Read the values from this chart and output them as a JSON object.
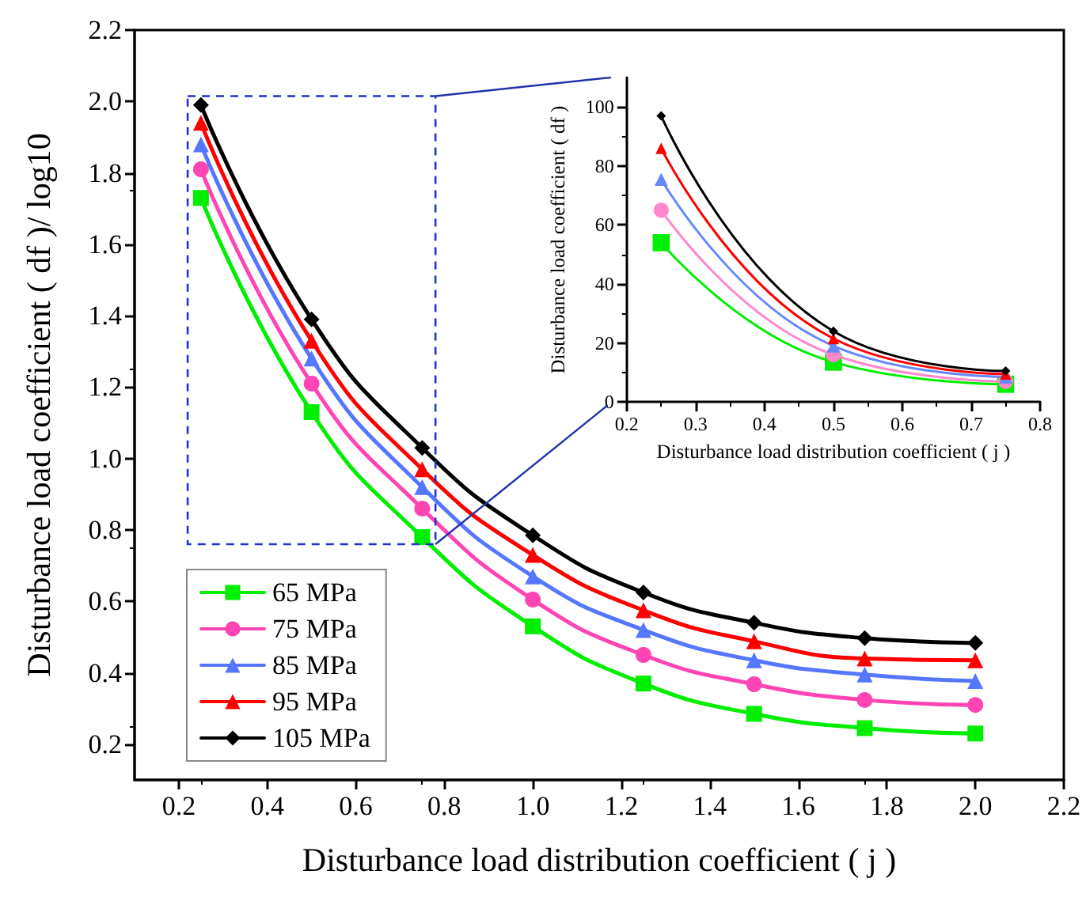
{
  "chart_data": [
    {
      "type": "line",
      "xlabel": "Disturbance load distribution coefficient ( j )",
      "ylabel": "Disturbance load coefficient ( df )/ log10",
      "x": [
        0.25,
        0.5,
        0.75,
        1.0,
        1.25,
        1.5,
        1.75,
        2.0
      ],
      "series": [
        {
          "name": "65 MPa",
          "color": "#00ee00",
          "marker": "square",
          "values": [
            1.73,
            1.13,
            0.78,
            0.53,
            0.37,
            0.285,
            0.245,
            0.23
          ]
        },
        {
          "name": "75 MPa",
          "color": "#ff44b4",
          "marker": "circle",
          "values": [
            1.81,
            1.21,
            0.86,
            0.605,
            0.45,
            0.368,
            0.324,
            0.31
          ]
        },
        {
          "name": "85 MPa",
          "color": "#5577ff",
          "marker": "triangle",
          "values": [
            1.88,
            1.28,
            0.92,
            0.67,
            0.52,
            0.435,
            0.395,
            0.377
          ]
        },
        {
          "name": "95 MPa",
          "color": "#ff0000",
          "marker": "triangle",
          "values": [
            1.94,
            1.33,
            0.97,
            0.73,
            0.575,
            0.488,
            0.44,
            0.435
          ]
        },
        {
          "name": "105 MPa",
          "color": "#000000",
          "marker": "diamond",
          "values": [
            1.99,
            1.39,
            1.03,
            0.785,
            0.625,
            0.54,
            0.497,
            0.484
          ]
        }
      ],
      "xlim": [
        0.1,
        2.2
      ],
      "xticks": [
        0.2,
        0.4,
        0.6,
        0.8,
        {
          "value": 1,
          "label": "1.0"
        },
        1.2,
        1.4,
        1.6,
        1.8,
        {
          "value": 2,
          "label": "2.0"
        },
        2.2
      ],
      "ylim": [
        0.1,
        2.2
      ],
      "yticks": [
        0.2,
        0.4,
        0.6,
        0.8,
        {
          "value": 1,
          "label": "1.0"
        },
        1.2,
        1.4,
        1.6,
        1.8,
        {
          "value": 2,
          "label": "2.0"
        },
        2.2
      ],
      "legend": "bottom left",
      "grid": false
    },
    {
      "type": "line",
      "xlabel": "Disturbance load distribution coefficient ( j )",
      "ylabel": "Disturbance load coefficient ( df )",
      "x": [
        0.25,
        0.5,
        0.75
      ],
      "series": [
        {
          "color": "#00ee00",
          "marker": "square",
          "values": [
            54,
            13.5,
            6
          ]
        },
        {
          "color": "#ff88cc",
          "marker": "circle",
          "values": [
            65,
            16,
            7
          ]
        },
        {
          "color": "#6688ff",
          "marker": "triangle",
          "values": [
            75.5,
            19,
            8.5
          ]
        },
        {
          "color": "#ff0000",
          "marker": "triangle",
          "values": [
            86,
            21.5,
            9.5
          ]
        },
        {
          "color": "#000000",
          "marker": "diamond",
          "values": [
            97,
            24,
            10.5
          ]
        }
      ],
      "xlim": [
        0.2,
        0.8
      ],
      "xticks": [
        0.2,
        0.3,
        0.4,
        0.5,
        0.6,
        0.7,
        0.8
      ],
      "ylim": [
        0,
        110
      ],
      "yticks": [
        0,
        20,
        40,
        60,
        80,
        100
      ],
      "grid": false
    }
  ]
}
